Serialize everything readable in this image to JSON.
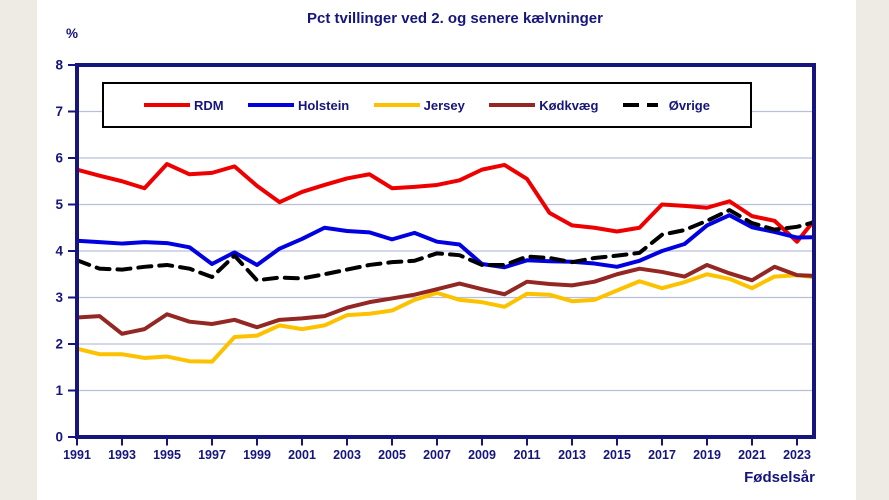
{
  "page": {
    "background": "#ffffff",
    "side_strip_color": "#edebe4"
  },
  "colors": {
    "text_navy": "#15157d",
    "plot_border": "#15157d",
    "gridline": "#b9bfd9",
    "legend_border": "#000000",
    "rdm": "#ee0000",
    "holstein": "#0000e0",
    "jersey": "#fcc200",
    "kodkvaeg": "#932723",
    "ovrige": "#000000"
  },
  "chart_data": {
    "type": "line",
    "title": "Pct tvillinger ved 2. og senere kælvninger",
    "xlabel": "Fødselsår",
    "ylabel": "%",
    "ylim": [
      0,
      8
    ],
    "y_ticks": [
      0,
      1,
      2,
      3,
      4,
      5,
      6,
      7,
      8
    ],
    "x_tick_labels": [
      "1991",
      "1993",
      "1995",
      "1997",
      "1999",
      "2001",
      "2003",
      "2005",
      "2007",
      "2009",
      "2011",
      "2013",
      "2015",
      "2017",
      "2019",
      "2021",
      "2023"
    ],
    "grid": "horizontal",
    "legend_position": "top",
    "x": [
      1991,
      1992,
      1993,
      1994,
      1995,
      1996,
      1997,
      1998,
      1999,
      2000,
      2001,
      2002,
      2003,
      2004,
      2005,
      2006,
      2007,
      2008,
      2009,
      2010,
      2011,
      2012,
      2013,
      2014,
      2015,
      2016,
      2017,
      2018,
      2019,
      2020,
      2021,
      2022,
      2023,
      2024
    ],
    "series": [
      {
        "name": "RDM",
        "color": "#ee0000",
        "style": "solid",
        "values": [
          5.75,
          5.62,
          5.5,
          5.35,
          5.87,
          5.65,
          5.68,
          5.82,
          5.4,
          5.05,
          5.27,
          5.42,
          5.56,
          5.65,
          5.35,
          5.38,
          5.42,
          5.52,
          5.75,
          5.85,
          5.55,
          4.82,
          4.55,
          4.5,
          4.42,
          4.5,
          5.0,
          4.97,
          4.93,
          5.07,
          4.75,
          4.65,
          4.2,
          4.8
        ]
      },
      {
        "name": "Holstein",
        "color": "#0000e0",
        "style": "solid",
        "values": [
          4.22,
          4.19,
          4.16,
          4.19,
          4.17,
          4.08,
          3.72,
          3.97,
          3.7,
          4.05,
          4.26,
          4.5,
          4.43,
          4.4,
          4.25,
          4.39,
          4.2,
          4.14,
          3.72,
          3.65,
          3.8,
          3.78,
          3.77,
          3.73,
          3.66,
          3.79,
          4.0,
          4.15,
          4.55,
          4.77,
          4.51,
          4.41,
          4.29,
          4.3
        ]
      },
      {
        "name": "Jersey",
        "color": "#fcc200",
        "style": "solid",
        "values": [
          1.9,
          1.78,
          1.78,
          1.7,
          1.73,
          1.63,
          1.62,
          2.15,
          2.18,
          2.4,
          2.32,
          2.4,
          2.62,
          2.65,
          2.72,
          2.95,
          3.1,
          2.95,
          2.9,
          2.8,
          3.08,
          3.06,
          2.92,
          2.95,
          3.15,
          3.35,
          3.2,
          3.33,
          3.5,
          3.4,
          3.2,
          3.45,
          3.48,
          3.42
        ]
      },
      {
        "name": "Kødkvæg",
        "color": "#932723",
        "style": "solid",
        "values": [
          2.57,
          2.6,
          2.22,
          2.32,
          2.64,
          2.48,
          2.43,
          2.52,
          2.36,
          2.52,
          2.55,
          2.6,
          2.78,
          2.9,
          2.98,
          3.06,
          3.18,
          3.3,
          3.18,
          3.07,
          3.34,
          3.29,
          3.26,
          3.34,
          3.5,
          3.62,
          3.55,
          3.45,
          3.7,
          3.52,
          3.37,
          3.66,
          3.48,
          3.46
        ]
      },
      {
        "name": "Øvrige",
        "color": "#000000",
        "style": "dashed",
        "values": [
          3.8,
          3.62,
          3.6,
          3.66,
          3.7,
          3.62,
          3.44,
          3.9,
          3.37,
          3.43,
          3.41,
          3.5,
          3.6,
          3.7,
          3.76,
          3.79,
          3.95,
          3.91,
          3.7,
          3.7,
          3.88,
          3.85,
          3.76,
          3.85,
          3.9,
          3.96,
          4.35,
          4.45,
          4.65,
          4.88,
          4.6,
          4.46,
          4.52,
          4.65
        ]
      }
    ]
  }
}
